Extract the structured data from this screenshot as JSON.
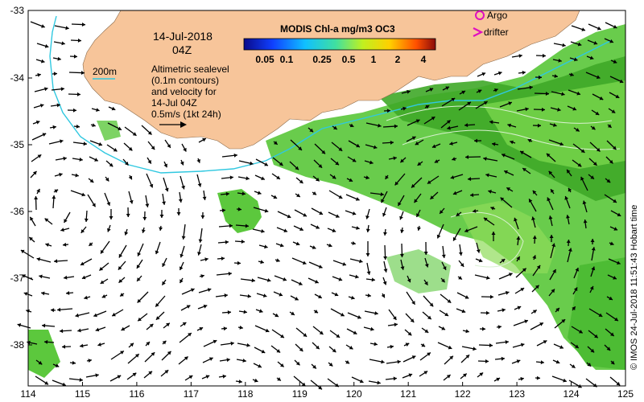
{
  "map": {
    "date": "14-Jul-2018",
    "time": "04Z",
    "depth_contour_label": "200m",
    "altimetry_note": [
      "Altimetric sealevel",
      "(0.1m contours)",
      "and velocity for",
      "14-Jul 04Z",
      "0.5m/s (1kt 24h)"
    ],
    "credit": "© IMOS 24-Jul-2018 11:51:43 Hobart time",
    "lon_ticks": [
      "114",
      "115",
      "116",
      "117",
      "118",
      "119",
      "120",
      "121",
      "122",
      "123",
      "124",
      "125"
    ],
    "lat_ticks": [
      "-33",
      "-34",
      "-35",
      "-36",
      "-37",
      "-38"
    ],
    "colors": {
      "land": "#f7c59a",
      "chl": "#4dc43a",
      "chl_dark": "#2e8f1f",
      "isobath": "#30c8e0",
      "argo": "#e010c0",
      "drifter": "#e010c0"
    }
  },
  "colorbar": {
    "title": "MODIS Chl-a mg/m3 OC3",
    "tick_labels": [
      "0.05",
      "0.1",
      "0.25",
      "0.5",
      "1",
      "2",
      "4"
    ]
  },
  "legend": {
    "argo_label": "Argo",
    "drifter_label": "drifter"
  }
}
